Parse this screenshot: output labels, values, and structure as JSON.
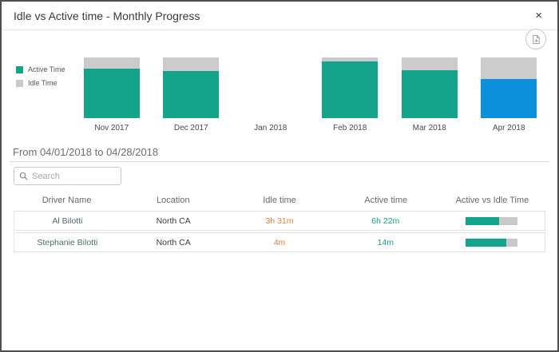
{
  "dialog": {
    "title": "Idle vs Active time - Monthly Progress",
    "close_label": "×"
  },
  "colors": {
    "active": "#14a38b",
    "idle": "#cbcbcb",
    "selected": "#0c90dc",
    "idle_text": "#e2833e",
    "active_text": "#14a38b"
  },
  "chart_data": {
    "type": "bar",
    "stacked": true,
    "subtype": "100% stacked monthly idle vs active time",
    "categories": [
      "Nov 2017",
      "Dec 2017",
      "Jan 2018",
      "Feb 2018",
      "Mar 2018",
      "Apr 2018"
    ],
    "series": [
      {
        "name": "Active Time",
        "color": "#14a38b",
        "values": [
          82,
          77,
          0,
          94,
          79,
          64
        ]
      },
      {
        "name": "Idle Time",
        "color": "#cbcbcb",
        "values": [
          18,
          23,
          0,
          6,
          21,
          36
        ]
      }
    ],
    "selected_category": "Apr 2018",
    "selected_color": "#0c90dc",
    "ylim": [
      0,
      100
    ],
    "grid": false,
    "legend_position": "left",
    "legend": [
      "Active Time",
      "Idle Time"
    ]
  },
  "filter": {
    "date_range": "From 04/01/2018 to 04/28/2018"
  },
  "search": {
    "placeholder": "Search",
    "value": ""
  },
  "table": {
    "columns": [
      "Driver Name",
      "Location",
      "Idle time",
      "Active time",
      "Active vs Idle Time"
    ],
    "rows": [
      {
        "driver": "Al Bilotti",
        "location": "North CA",
        "idle": "3h 31m",
        "active": "6h 22m",
        "active_pct": 64
      },
      {
        "driver": "Stephanie Bilotti",
        "location": "North CA",
        "idle": "4m",
        "active": "14m",
        "active_pct": 78
      }
    ]
  }
}
